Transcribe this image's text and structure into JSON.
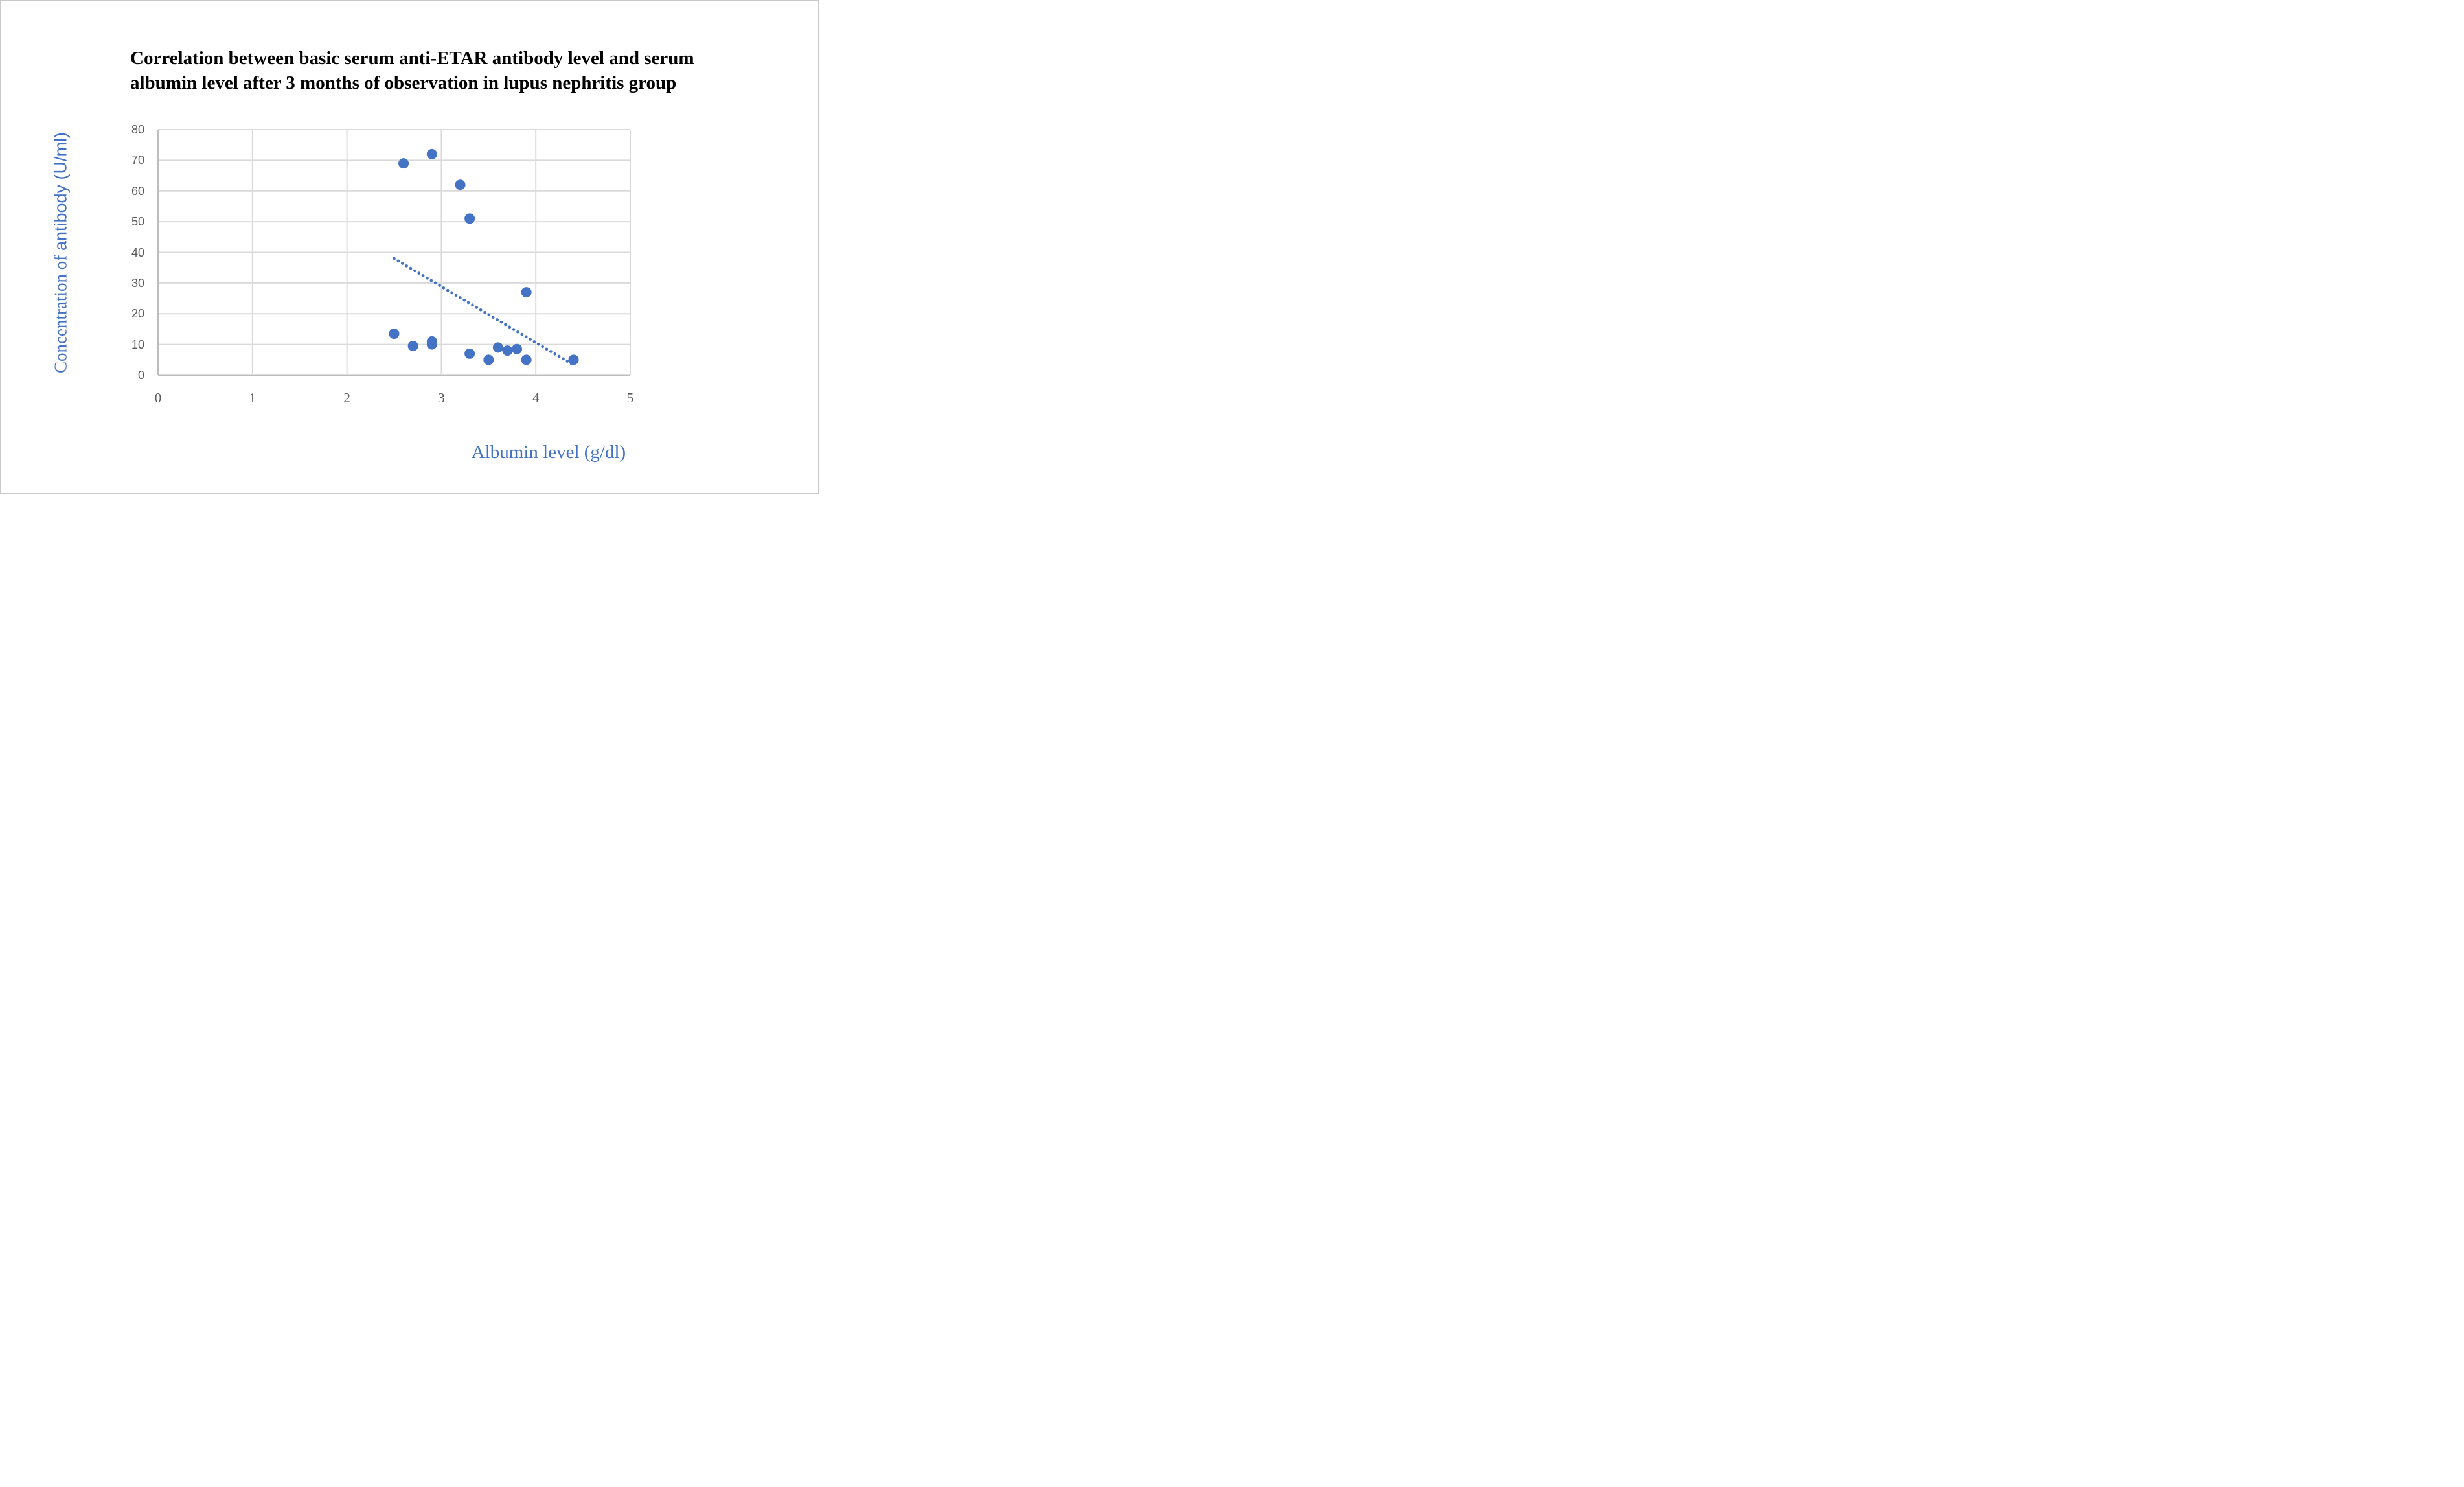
{
  "chart_data": {
    "type": "scatter",
    "title_lines": [
      "Correlation between basic serum anti-ETAR antibody level and serum",
      "albumin level after 3 months of observation in lupus nephritis group"
    ],
    "xlabel": "Albumin level (g/dl)",
    "ylabel": "Concentration of antibody (U/ml)",
    "ylabel_serif_part": "Concentration of ",
    "ylabel_sans_part": "antibody (U/ml)",
    "xlim": [
      0,
      5
    ],
    "ylim": [
      0,
      80
    ],
    "x_ticks": [
      0,
      1,
      2,
      3,
      4,
      5
    ],
    "y_ticks": [
      0,
      10,
      20,
      30,
      40,
      50,
      60,
      70,
      80
    ],
    "grid": true,
    "legend": "none",
    "points": [
      [
        2.5,
        13.5
      ],
      [
        2.6,
        69
      ],
      [
        2.7,
        9.5
      ],
      [
        2.9,
        72
      ],
      [
        2.9,
        11
      ],
      [
        2.9,
        10
      ],
      [
        3.2,
        62
      ],
      [
        3.3,
        51
      ],
      [
        3.3,
        7
      ],
      [
        3.5,
        5
      ],
      [
        3.6,
        9
      ],
      [
        3.7,
        8
      ],
      [
        3.8,
        8.5
      ],
      [
        3.9,
        27
      ],
      [
        3.9,
        5
      ],
      [
        4.4,
        5
      ]
    ],
    "trendline": {
      "style": "dotted",
      "x1": 2.5,
      "y1": 38,
      "x2": 4.4,
      "y2": 3.3
    },
    "colors": {
      "marker": "#4472c4",
      "trendline": "#4472c4",
      "axis_title": "#4472c4",
      "title": "#000000",
      "tick_label": "#595959",
      "gridline": "#dadada",
      "axis_line": "#bdbdbd",
      "background": "#ffffff",
      "page_border": "#c9c9c9"
    }
  }
}
